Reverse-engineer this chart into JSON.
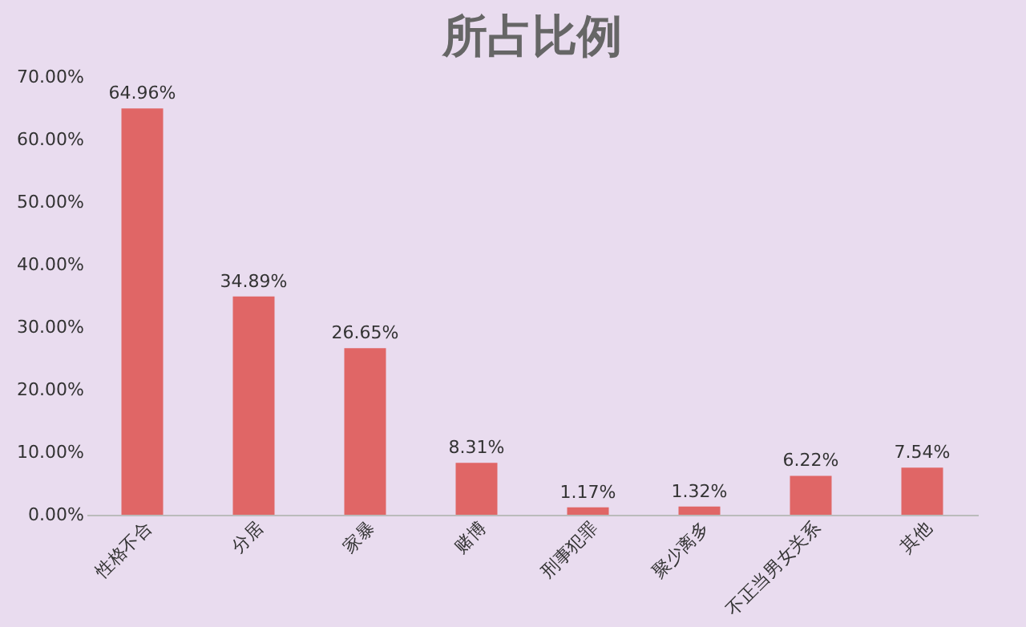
{
  "chart_data": {
    "type": "bar",
    "title": "所占比例",
    "categories": [
      "性格不合",
      "分居",
      "家暴",
      "赌博",
      "刑事犯罪",
      "聚少离多",
      "不正当男女关系",
      "其他"
    ],
    "values": [
      64.96,
      34.89,
      26.65,
      8.31,
      1.17,
      1.32,
      6.22,
      7.54
    ],
    "value_labels": [
      "64.96%",
      "34.89%",
      "26.65%",
      "8.31%",
      "1.17%",
      "1.32%",
      "6.22%",
      "7.54%"
    ],
    "color": "#e06666",
    "ylim": [
      0,
      70
    ],
    "yticks": [
      {
        "value": 0,
        "label": "0.00%"
      },
      {
        "value": 10,
        "label": "10.00%"
      },
      {
        "value": 20,
        "label": "20.00%"
      },
      {
        "value": 30,
        "label": "30.00%"
      },
      {
        "value": 40,
        "label": "40.00%"
      },
      {
        "value": 50,
        "label": "50.00%"
      },
      {
        "value": 60,
        "label": "60.00%"
      },
      {
        "value": 70,
        "label": "70.00%"
      }
    ],
    "grid": false
  }
}
